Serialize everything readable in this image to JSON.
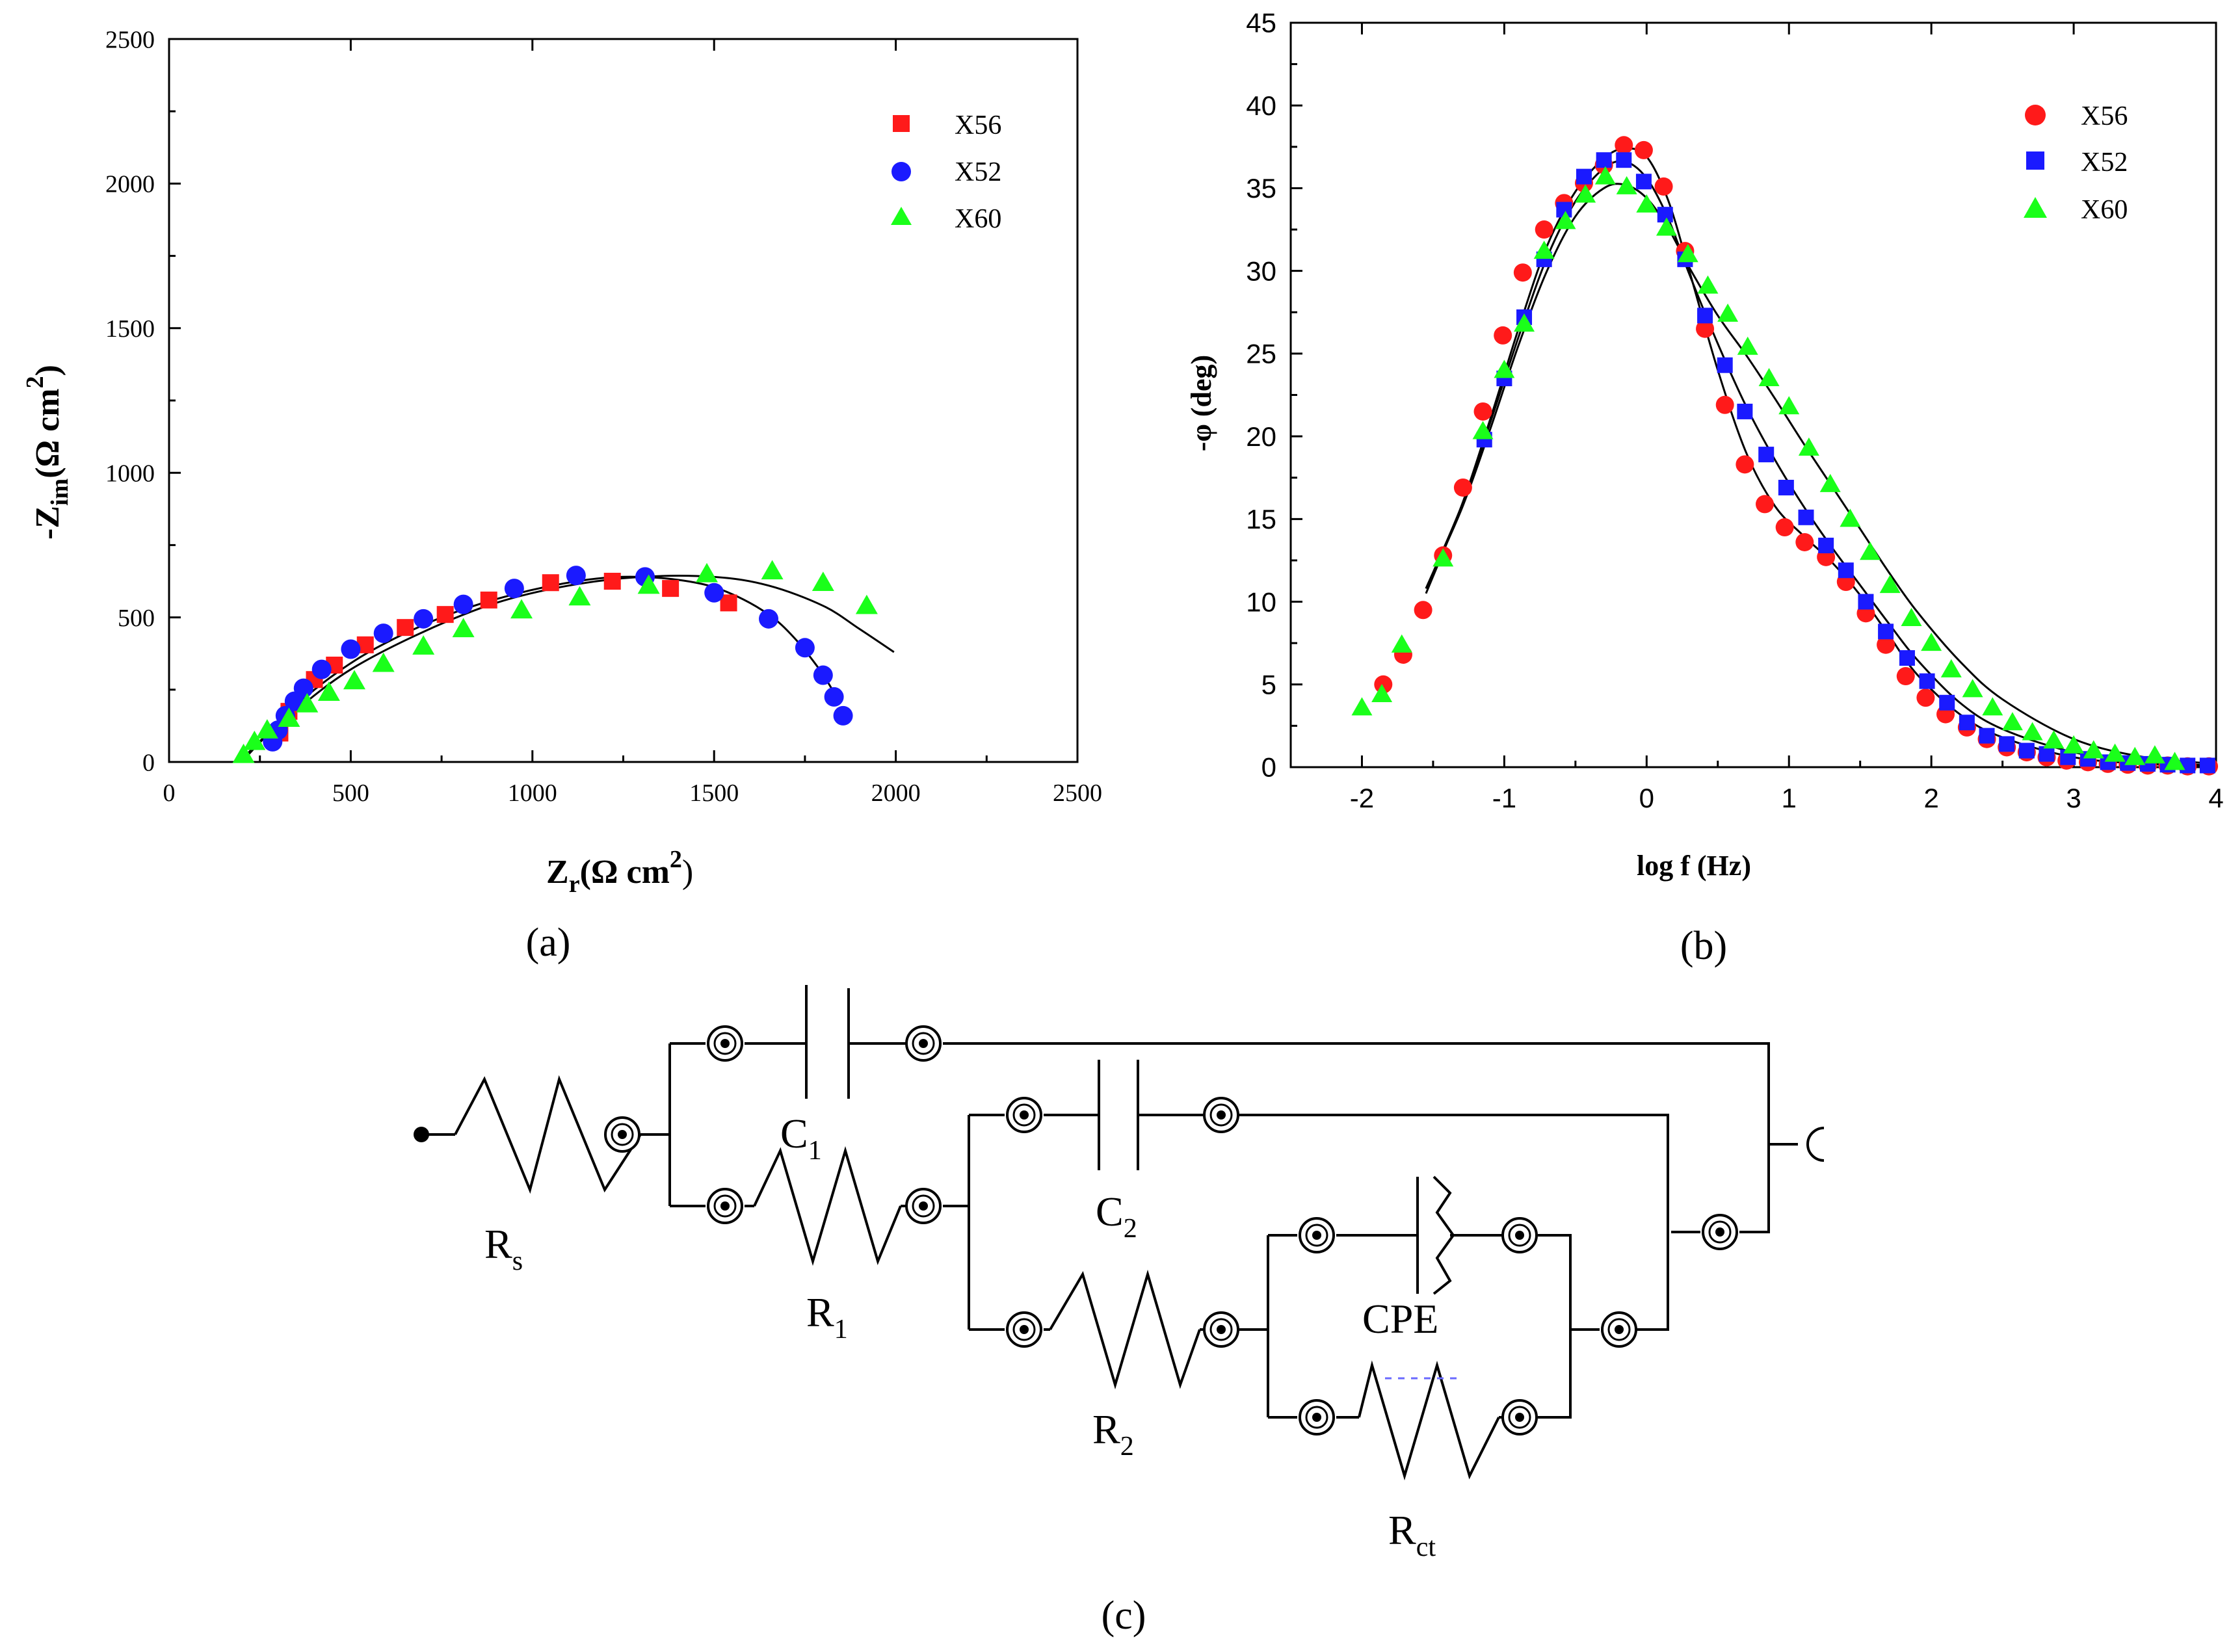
{
  "chart_data": [
    {
      "type": "scatter",
      "panel_label": "(a)",
      "xlabel": "Z",
      "xlabel_sub": "r",
      "xlabel_unit": "(Ω cm",
      "xlabel_unit_sup": "2",
      "xlabel_close": ")",
      "ylabel": "-Z",
      "ylabel_sub": "im",
      "ylabel_unit": "(Ω cm",
      "ylabel_unit_sup": "2",
      "ylabel_close": ")",
      "xlim": [
        0,
        2500
      ],
      "ylim": [
        0,
        2500
      ],
      "xticks": [
        "0",
        "500",
        "1000",
        "1500",
        "2000",
        "2500"
      ],
      "yticks": [
        "0",
        "500",
        "1000",
        "1500",
        "2000",
        "2500"
      ],
      "legend_position": "top-right",
      "series": [
        {
          "name": "X56",
          "marker": "square",
          "color": "#ff1a1a",
          "x": [
            305,
            330,
            400,
            455,
            540,
            650,
            760,
            880,
            1050,
            1220,
            1380,
            1540
          ],
          "y": [
            100,
            175,
            285,
            335,
            405,
            465,
            510,
            560,
            620,
            625,
            600,
            550
          ]
        },
        {
          "name": "X52",
          "marker": "circle",
          "color": "#1a1aff",
          "x": [
            285,
            300,
            320,
            345,
            370,
            420,
            500,
            590,
            700,
            810,
            950,
            1120,
            1310,
            1500,
            1650,
            1750,
            1800,
            1830,
            1855
          ],
          "y": [
            70,
            110,
            160,
            210,
            255,
            320,
            390,
            445,
            495,
            545,
            600,
            645,
            640,
            585,
            495,
            395,
            300,
            225,
            160
          ]
        },
        {
          "name": "X60",
          "marker": "triangle",
          "color": "#1aff1a",
          "x": [
            205,
            235,
            270,
            330,
            380,
            440,
            510,
            590,
            700,
            810,
            970,
            1130,
            1320,
            1480,
            1660,
            1800,
            1920
          ],
          "y": [
            25,
            70,
            110,
            150,
            200,
            240,
            280,
            340,
            400,
            460,
            525,
            570,
            610,
            650,
            660,
            620,
            540
          ]
        }
      ],
      "fit_curves": [
        {
          "x": [
            195,
            240,
            300,
            400,
            550,
            750,
            950,
            1150,
            1300,
            1450,
            1550,
            1650,
            1720,
            1790,
            1830
          ],
          "y": [
            0,
            60,
            130,
            250,
            380,
            500,
            580,
            630,
            640,
            620,
            580,
            510,
            430,
            320,
            240
          ]
        },
        {
          "x": [
            200,
            260,
            350,
            500,
            700,
            900,
            1100,
            1300,
            1500,
            1650,
            1800,
            1900,
            1995
          ],
          "y": [
            0,
            80,
            180,
            320,
            450,
            550,
            610,
            640,
            640,
            610,
            540,
            460,
            380
          ]
        }
      ]
    },
    {
      "type": "scatter",
      "panel_label": "(b)",
      "xlabel": "log f (Hz)",
      "ylabel": "-φ (deg)",
      "xlim": [
        -2.5,
        4
      ],
      "ylim": [
        0,
        45
      ],
      "xticks": [
        "-2",
        "-1",
        "0",
        "1",
        "2",
        "3",
        "4"
      ],
      "yticks": [
        "0",
        "5",
        "10",
        "15",
        "20",
        "25",
        "30",
        "35",
        "40",
        "45"
      ],
      "legend_position": "top-right",
      "series": [
        {
          "name": "X56",
          "marker": "circle",
          "color": "#ff1a1a",
          "x": [
            -1.85,
            -1.71,
            -1.57,
            -1.43,
            -1.29,
            -1.15,
            -1.01,
            -0.87,
            -0.72,
            -0.58,
            -0.44,
            -0.3,
            -0.16,
            -0.02,
            0.12,
            0.27,
            0.41,
            0.55,
            0.69,
            0.83,
            0.97,
            1.11,
            1.26,
            1.4,
            1.54,
            1.68,
            1.82,
            1.96,
            2.1,
            2.25,
            2.39,
            2.53,
            2.67,
            2.81,
            2.95,
            3.1,
            3.24,
            3.38,
            3.52,
            3.66,
            3.8,
            3.95
          ],
          "y": [
            5.0,
            6.8,
            9.5,
            12.8,
            16.9,
            21.5,
            26.1,
            29.9,
            32.5,
            34.1,
            35.3,
            36.4,
            37.6,
            37.3,
            35.1,
            31.2,
            26.5,
            21.9,
            18.3,
            15.9,
            14.5,
            13.6,
            12.7,
            11.2,
            9.3,
            7.4,
            5.5,
            4.2,
            3.2,
            2.4,
            1.7,
            1.2,
            0.9,
            0.6,
            0.4,
            0.3,
            0.2,
            0.15,
            0.1,
            0.1,
            0.05,
            0.05
          ]
        },
        {
          "name": "X52",
          "marker": "square",
          "color": "#1a1aff",
          "x": [
            -1.14,
            -1.0,
            -0.86,
            -0.72,
            -0.58,
            -0.44,
            -0.3,
            -0.16,
            -0.02,
            0.13,
            0.27,
            0.41,
            0.55,
            0.69,
            0.84,
            0.98,
            1.12,
            1.26,
            1.4,
            1.54,
            1.68,
            1.83,
            1.97,
            2.11,
            2.25,
            2.39,
            2.53,
            2.67,
            2.81,
            2.96,
            3.1,
            3.24,
            3.38,
            3.52,
            3.66,
            3.8,
            3.94
          ],
          "y": [
            19.8,
            23.5,
            27.2,
            30.7,
            33.7,
            35.7,
            36.7,
            36.7,
            35.4,
            33.4,
            30.7,
            27.3,
            24.3,
            21.5,
            18.9,
            16.9,
            15.1,
            13.4,
            11.9,
            10.0,
            8.2,
            6.6,
            5.2,
            3.9,
            2.7,
            1.9,
            1.4,
            1.0,
            0.8,
            0.6,
            0.5,
            0.3,
            0.25,
            0.2,
            0.15,
            0.1,
            0.1
          ]
        },
        {
          "name": "X60",
          "marker": "triangle",
          "color": "#1aff1a",
          "x": [
            -2.0,
            -1.86,
            -1.72,
            -1.43,
            -1.15,
            -1.0,
            -0.86,
            -0.72,
            -0.57,
            -0.43,
            -0.29,
            -0.14,
            0.0,
            0.14,
            0.29,
            0.43,
            0.57,
            0.71,
            0.86,
            1.0,
            1.14,
            1.29,
            1.43,
            1.57,
            1.71,
            1.86,
            2.0,
            2.14,
            2.29,
            2.43,
            2.57,
            2.71,
            2.86,
            3.0,
            3.14,
            3.29,
            3.43,
            3.57,
            3.71
          ],
          "y": [
            3.6,
            4.4,
            7.4,
            12.6,
            20.3,
            24.0,
            26.8,
            31.2,
            33.0,
            34.6,
            35.7,
            35.1,
            34.0,
            32.6,
            31.0,
            29.1,
            27.4,
            25.4,
            23.5,
            21.8,
            19.3,
            17.1,
            15.0,
            13.0,
            11.0,
            9.0,
            7.5,
            5.9,
            4.7,
            3.6,
            2.7,
            2.1,
            1.6,
            1.3,
            1.0,
            0.8,
            0.6,
            0.7,
            0.3
          ]
        }
      ],
      "fit_curves": [
        {
          "x": [
            -1.55,
            -1.3,
            -1.1,
            -0.9,
            -0.7,
            -0.5,
            -0.3,
            -0.15,
            0.0,
            0.15,
            0.3,
            0.5,
            0.7,
            0.9,
            1.1,
            1.3,
            1.5,
            1.7,
            1.9,
            2.2,
            2.5,
            3.0,
            3.5,
            4.0
          ],
          "y": [
            10.5,
            15.8,
            21.0,
            26.5,
            31.5,
            34.8,
            36.8,
            37.4,
            36.9,
            34.3,
            30.0,
            24.0,
            19.0,
            15.8,
            14.0,
            12.4,
            10.4,
            8.0,
            5.6,
            3.2,
            1.8,
            0.6,
            0.2,
            0.05
          ]
        },
        {
          "x": [
            -1.55,
            -1.3,
            -1.1,
            -0.9,
            -0.7,
            -0.5,
            -0.3,
            -0.15,
            0.0,
            0.15,
            0.3,
            0.5,
            0.7,
            0.9,
            1.1,
            1.3,
            1.5,
            1.7,
            1.9,
            2.2,
            2.5,
            3.0,
            3.5,
            4.0
          ],
          "y": [
            10.8,
            15.8,
            20.8,
            26.0,
            30.8,
            34.2,
            36.2,
            36.6,
            35.6,
            33.2,
            29.8,
            25.6,
            21.8,
            18.6,
            15.8,
            13.3,
            11.0,
            8.7,
            6.5,
            3.9,
            2.3,
            0.9,
            0.3,
            0.1
          ]
        },
        {
          "x": [
            -1.55,
            -1.3,
            -1.1,
            -0.9,
            -0.7,
            -0.5,
            -0.3,
            -0.15,
            0.0,
            0.15,
            0.3,
            0.5,
            0.7,
            0.9,
            1.1,
            1.3,
            1.5,
            1.7,
            1.9,
            2.2,
            2.5,
            3.0,
            3.5,
            4.0
          ],
          "y": [
            10.8,
            15.6,
            20.4,
            25.5,
            30.0,
            33.3,
            35.0,
            35.2,
            34.4,
            32.6,
            30.2,
            27.3,
            24.9,
            22.3,
            19.6,
            17.0,
            14.4,
            11.8,
            9.4,
            6.4,
            4.1,
            1.7,
            0.6,
            0.2
          ]
        }
      ]
    }
  ],
  "circuit": {
    "panel_label": "(c)",
    "labels": {
      "Rs_main": "R",
      "Rs_sub": "s",
      "C1_main": "C",
      "C1_sub": "1",
      "R1_main": "R",
      "R1_sub": "1",
      "C2_main": "C",
      "C2_sub": "2",
      "R2_main": "R",
      "R2_sub": "2",
      "CPE": "CPE",
      "Rct_main": "R",
      "Rct_sub": "ct"
    }
  },
  "colors": {
    "axis": "#000000",
    "fit": "#000000"
  }
}
